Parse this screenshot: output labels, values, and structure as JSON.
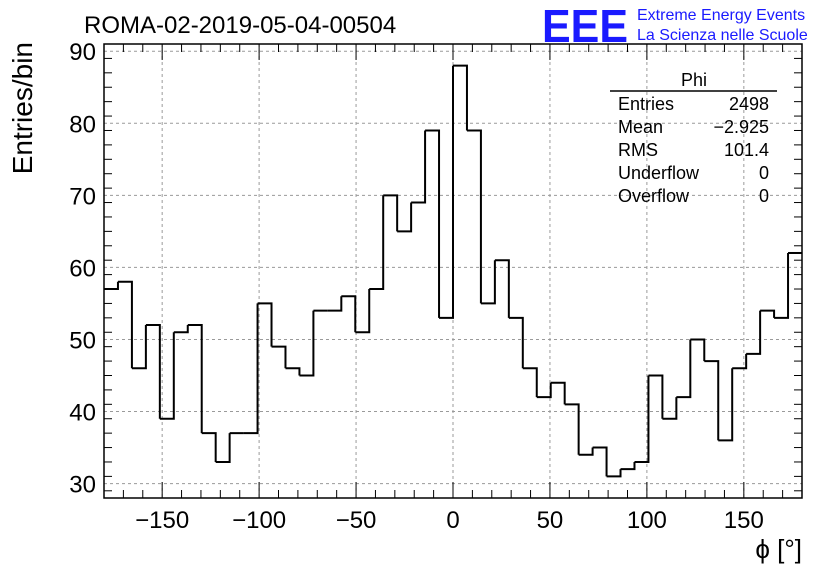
{
  "header": {
    "run_title": "ROMA-02-2019-05-04-00504",
    "logo_text": "EEE",
    "logo_line1": "Extreme Energy Events",
    "logo_line2": "La Scienza nelle Scuole"
  },
  "stats": {
    "title": "Phi",
    "rows": [
      {
        "label": "Entries",
        "value": "2498"
      },
      {
        "label": "Mean",
        "value": "−2.925"
      },
      {
        "label": "RMS",
        "value": "101.4"
      },
      {
        "label": "Underflow",
        "value": "0"
      },
      {
        "label": "Overflow",
        "value": "0"
      }
    ]
  },
  "colors": {
    "logo": "#1a1aff",
    "line": "#000000",
    "grid": "#9a9a9a"
  },
  "chart_data": {
    "type": "histogram",
    "title": "ROMA-02-2019-05-04-00504",
    "xlabel": "ϕ [°]",
    "ylabel": "Entries/bin",
    "xlim": [
      -180,
      180
    ],
    "ylim": [
      28,
      91
    ],
    "grid": true,
    "bin_width": 7.2,
    "bin_edges_start": -180,
    "x_ticks": [
      -150,
      -100,
      -50,
      0,
      50,
      100,
      150
    ],
    "x_tick_labels": [
      "−150",
      "−100",
      "−50",
      "0",
      "50",
      "100",
      "150"
    ],
    "y_ticks": [
      30,
      40,
      50,
      60,
      70,
      80,
      90
    ],
    "y_tick_labels": [
      "30",
      "40",
      "50",
      "60",
      "70",
      "80",
      "90"
    ],
    "values": [
      57,
      58,
      46,
      52,
      39,
      51,
      52,
      37,
      33,
      37,
      37,
      55,
      49,
      46,
      45,
      54,
      54,
      56,
      51,
      57,
      70,
      65,
      69,
      79,
      53,
      88,
      79,
      55,
      61,
      53,
      46,
      42,
      44,
      41,
      34,
      35,
      31,
      32,
      33,
      45,
      39,
      42,
      50,
      47,
      36,
      46,
      48,
      54,
      53,
      62
    ]
  }
}
